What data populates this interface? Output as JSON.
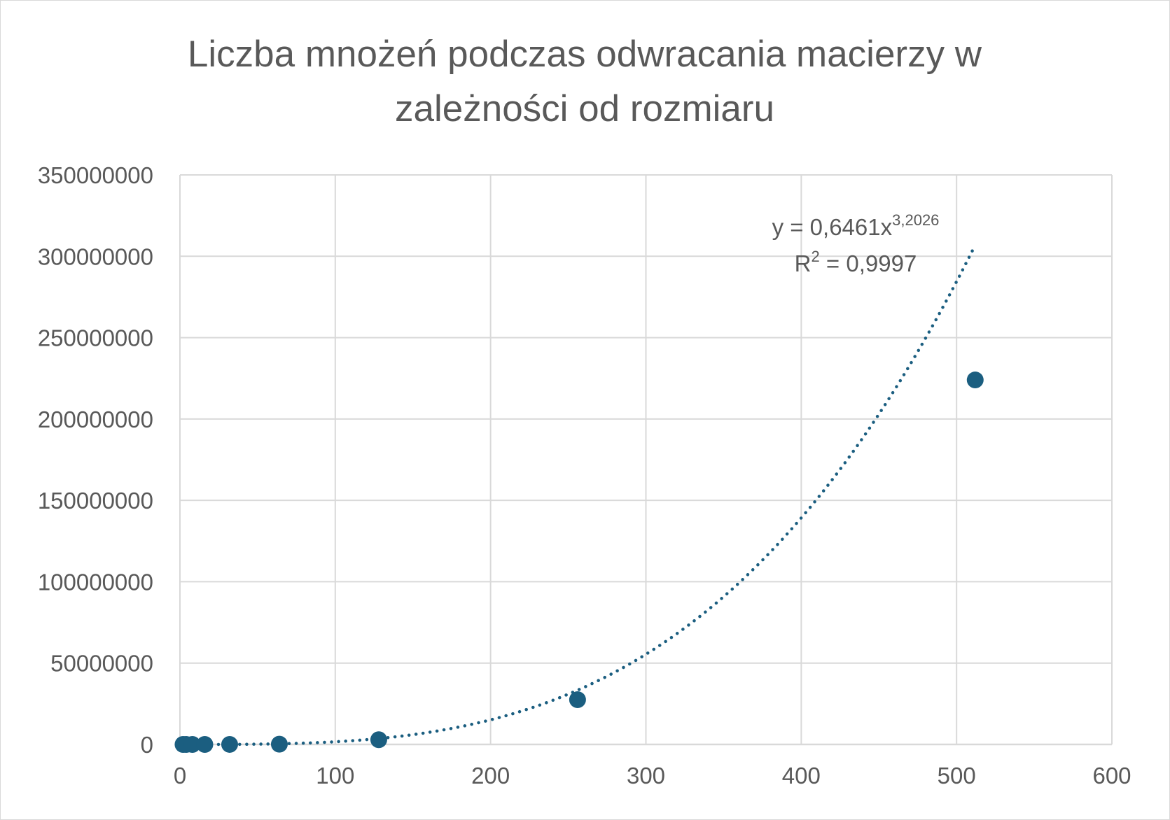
{
  "chart_data": {
    "type": "scatter",
    "title_line1": "Liczba mnożeń podczas odwracania macierzy w",
    "title_line2": "zależności od rozmiaru",
    "xlim": [
      0,
      600
    ],
    "ylim": [
      0,
      350000000
    ],
    "x_ticks": [
      "0",
      "100",
      "200",
      "300",
      "400",
      "500",
      "600"
    ],
    "y_ticks": [
      "0",
      "50000000",
      "100000000",
      "150000000",
      "200000000",
      "250000000",
      "300000000",
      "350000000"
    ],
    "grid": true,
    "series": [
      {
        "x": [
          2,
          4,
          8,
          16,
          32,
          64,
          128,
          256,
          512
        ],
        "y": [
          5,
          40,
          330,
          2700,
          22000,
          170000,
          2900000,
          27500000,
          224000000
        ],
        "color": "#1b5e80"
      }
    ],
    "trendline": {
      "type": "power",
      "coefficient": 0.6461,
      "exponent": 3.2026,
      "x_range": [
        2,
        512
      ],
      "color": "#1b5e80",
      "equation_prefix": "y = 0,6461x",
      "equation_exponent": "3,2026",
      "r2_prefix": "R",
      "r2_exponent": "2",
      "r2_value": " = 0,9997"
    }
  }
}
